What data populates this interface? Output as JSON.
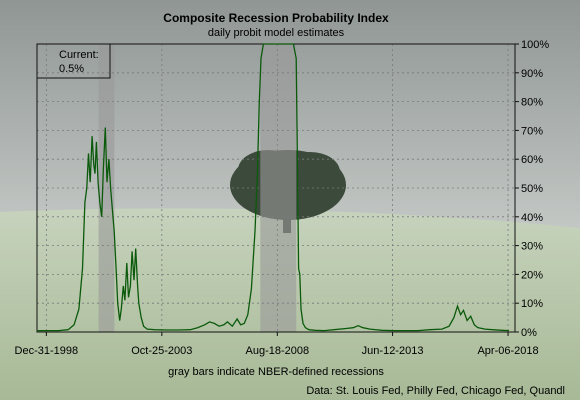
{
  "colors": {
    "line": "#0b5a0b",
    "recession_band": "#9a9a9a",
    "grid": "#7a7a7a",
    "sky_top": "#8f9693",
    "sky_bottom": "#e9ecea",
    "field": "#a7b996",
    "tree": "#3c4a3c"
  },
  "background": {
    "description_icon": "landscape-tree-icon"
  },
  "chart_data": {
    "type": "line",
    "title": "Composite Recession Probability Index",
    "subtitle": "daily probit model estimates",
    "xlabel": "gray bars indicate NBER-defined recessions",
    "source": "Data: St. Louis Fed, Philly Fed, Chicago Fed, Quandl",
    "current_box": {
      "label": "Current:",
      "value": "0.5%"
    },
    "xlim": [
      1998.6,
      2018.55
    ],
    "ylim": [
      0,
      100
    ],
    "x_ticks": [
      {
        "x": 1998.99,
        "label": "Dec-31-1998"
      },
      {
        "x": 2003.81,
        "label": "Oct-25-2003"
      },
      {
        "x": 2008.63,
        "label": "Aug-18-2008"
      },
      {
        "x": 2013.44,
        "label": "Jun-12-2013"
      },
      {
        "x": 2018.26,
        "label": "Apr-06-2018"
      }
    ],
    "y_ticks": [
      0,
      10,
      20,
      30,
      40,
      50,
      60,
      70,
      80,
      90,
      100
    ],
    "y_tick_labels": [
      "0%",
      "10%",
      "20%",
      "30%",
      "40%",
      "50%",
      "60%",
      "70%",
      "80%",
      "90%",
      "100%"
    ],
    "y_axis_side": "right",
    "grid": true,
    "recessions": [
      {
        "start": 2001.17,
        "end": 2001.83
      },
      {
        "start": 2007.92,
        "end": 2009.42
      }
    ],
    "series": [
      {
        "x": [
          1998.6,
          1999.0,
          1999.5,
          1999.9,
          2000.15,
          2000.35,
          2000.5,
          2000.6,
          2000.68,
          2000.75,
          2000.82,
          2000.9,
          2000.97,
          2001.02,
          2001.08,
          2001.15,
          2001.22,
          2001.3,
          2001.37,
          2001.45,
          2001.52,
          2001.6,
          2001.67,
          2001.75,
          2001.82,
          2001.9,
          2001.97,
          2002.05,
          2002.12,
          2002.2,
          2002.27,
          2002.35,
          2002.42,
          2002.5,
          2002.57,
          2002.65,
          2002.72,
          2002.8,
          2002.85,
          2002.95,
          2003.05,
          2003.2,
          2003.5,
          2004.0,
          2004.5,
          2005.0,
          2005.3,
          2005.6,
          2005.8,
          2006.0,
          2006.2,
          2006.4,
          2006.55,
          2006.75,
          2006.95,
          2007.1,
          2007.25,
          2007.4,
          2007.55,
          2007.7,
          2007.8,
          2007.88,
          2007.95,
          2008.05,
          2008.15,
          2008.25,
          2008.35,
          2008.45,
          2008.55,
          2008.62,
          2008.7,
          2009.0,
          2009.3,
          2009.42,
          2009.47,
          2009.52,
          2009.57,
          2009.62,
          2009.7,
          2009.8,
          2009.95,
          2010.2,
          2010.6,
          2011.0,
          2011.5,
          2011.8,
          2012.0,
          2012.2,
          2012.5,
          2013.0,
          2013.5,
          2014.0,
          2014.5,
          2015.0,
          2015.5,
          2015.8,
          2016.0,
          2016.15,
          2016.28,
          2016.4,
          2016.55,
          2016.7,
          2016.85,
          2017.0,
          2017.3,
          2017.6,
          2018.0,
          2018.3
        ],
        "y": [
          0.5,
          0.5,
          0.5,
          0.8,
          2.5,
          8,
          22,
          45,
          50,
          62,
          52,
          68,
          58,
          55,
          66,
          52,
          45,
          40,
          57,
          71,
          52,
          60,
          50,
          42,
          35,
          22,
          10,
          4,
          8,
          16,
          11,
          24,
          12,
          16,
          28,
          18,
          29,
          16,
          10,
          5,
          2,
          1,
          0.8,
          0.7,
          0.7,
          0.8,
          1.5,
          2.5,
          3.5,
          3,
          2,
          2.5,
          3.5,
          2,
          4.5,
          2.5,
          3,
          6,
          15,
          35,
          55,
          80,
          95,
          100,
          100,
          100,
          100,
          100,
          100,
          100,
          100,
          100,
          100,
          95,
          60,
          22,
          20,
          8,
          3,
          1.5,
          0.8,
          0.6,
          0.5,
          0.8,
          1.2,
          1.5,
          2.2,
          1.5,
          1,
          0.6,
          0.5,
          0.5,
          0.5,
          0.8,
          1,
          2,
          5,
          9,
          6,
          7.5,
          4,
          5.5,
          2.5,
          1.5,
          1,
          0.8,
          0.6,
          0.5
        ]
      }
    ]
  }
}
